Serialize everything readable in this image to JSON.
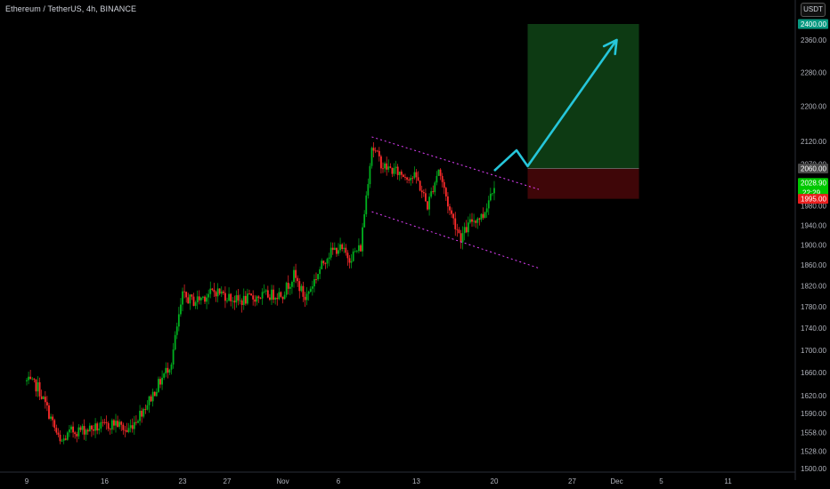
{
  "header": {
    "symbol_title": "Ethereum / TetherUS, 4h, BINANCE",
    "currency_button": "USDT"
  },
  "chart_data": {
    "type": "candlestick",
    "title": "Ethereum / TetherUS, 4h, BINANCE",
    "ylim": [
      1496,
      2420
    ],
    "y_scale": "log",
    "y_ticks": [
      1500,
      1528,
      1558,
      1590,
      1620,
      1660,
      1700,
      1740,
      1780,
      1820,
      1860,
      1900,
      1940,
      1980,
      2020,
      2070,
      2120,
      2200,
      2280,
      2360
    ],
    "x_ticks": [
      "9",
      "16",
      "23",
      "27",
      "Nov",
      "6",
      "13",
      "20",
      "27",
      "Dec",
      "5",
      "11"
    ],
    "price_tags": [
      {
        "label": "2400.00",
        "value": 2400,
        "color": "#089981"
      },
      {
        "label": "2060.00",
        "value": 2060,
        "color": "#4a4a4a"
      },
      {
        "label": "2028.90",
        "value": 2028.9,
        "sublabel": "22:29",
        "color": "#00c800"
      },
      {
        "label": "1995.00",
        "value": 1995,
        "color": "#e91e1e"
      }
    ],
    "position": {
      "entry": 2060,
      "target": 2400,
      "stop": 1995
    },
    "channel": {
      "upper": [
        {
          "date": "Nov 9",
          "price": 2130
        },
        {
          "date": "Nov 24",
          "price": 2015
        }
      ],
      "lower": [
        {
          "date": "Nov 9",
          "price": 1968
        },
        {
          "date": "Nov 24",
          "price": 1854
        }
      ]
    },
    "projection": [
      {
        "date": "Nov 20",
        "price": 2055
      },
      {
        "date": "Nov 22",
        "price": 2100
      },
      {
        "date": "Nov 23",
        "price": 2065
      },
      {
        "date": "Dec 1",
        "price": 2360
      }
    ],
    "price_waypoints": [
      {
        "date": "Oct 9",
        "price": 1645
      },
      {
        "date": "Oct 10",
        "price": 1635
      },
      {
        "date": "Oct 11",
        "price": 1590
      },
      {
        "date": "Oct 12",
        "price": 1540
      },
      {
        "date": "Oct 13",
        "price": 1560
      },
      {
        "date": "Oct 16",
        "price": 1568
      },
      {
        "date": "Oct 17",
        "price": 1575
      },
      {
        "date": "Oct 18",
        "price": 1560
      },
      {
        "date": "Oct 19",
        "price": 1585
      },
      {
        "date": "Oct 20",
        "price": 1612
      },
      {
        "date": "Oct 21",
        "price": 1645
      },
      {
        "date": "Oct 22",
        "price": 1680
      },
      {
        "date": "Oct 23",
        "price": 1800
      },
      {
        "date": "Oct 24",
        "price": 1790
      },
      {
        "date": "Oct 26",
        "price": 1810
      },
      {
        "date": "Oct 28",
        "price": 1790
      },
      {
        "date": "Oct 30",
        "price": 1800
      },
      {
        "date": "Nov 1",
        "price": 1805
      },
      {
        "date": "Nov 2",
        "price": 1840
      },
      {
        "date": "Nov 3",
        "price": 1795
      },
      {
        "date": "Nov 5",
        "price": 1880
      },
      {
        "date": "Nov 6",
        "price": 1895
      },
      {
        "date": "Nov 7",
        "price": 1875
      },
      {
        "date": "Nov 8",
        "price": 1895
      },
      {
        "date": "Nov 9",
        "price": 2110
      },
      {
        "date": "Nov 10",
        "price": 2065
      },
      {
        "date": "Nov 11",
        "price": 2055
      },
      {
        "date": "Nov 12",
        "price": 2045
      },
      {
        "date": "Nov 13",
        "price": 2040
      },
      {
        "date": "Nov 14",
        "price": 1980
      },
      {
        "date": "Nov 15",
        "price": 2060
      },
      {
        "date": "Nov 16",
        "price": 1970
      },
      {
        "date": "Nov 17",
        "price": 1915
      },
      {
        "date": "Nov 18",
        "price": 1950
      },
      {
        "date": "Nov 19",
        "price": 1960
      },
      {
        "date": "Nov 20",
        "price": 2029
      }
    ],
    "colors": {
      "up": "#00b01e",
      "down": "#ff2b2b",
      "channel": "#e040fb",
      "projection": "#26c6da",
      "target_zone": "#0d3a13",
      "stop_zone": "#3f0608",
      "background": "#000000"
    }
  }
}
